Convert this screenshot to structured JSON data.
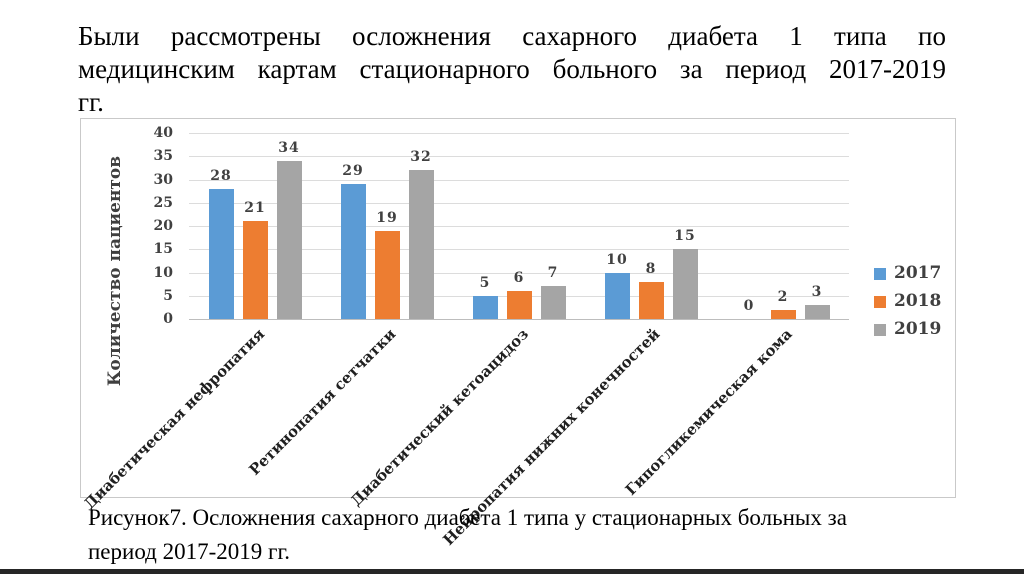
{
  "slide": {
    "title_lines": [
      "Были рассмотрены осложнения сахарного диабета 1 типа по",
      "медицинским картам стационарного больного за период 2017-2019",
      "гг."
    ],
    "caption_lines": [
      "Рисунок7. Осложнения сахарного диабета 1 типа у стационарных больных за",
      "период 2017-2019 гг."
    ]
  },
  "chart_data": {
    "type": "bar",
    "title": "",
    "xlabel": "",
    "ylabel": "Количество пациентов",
    "categories": [
      "Диабетическая нефропатия",
      "Ретинопатия сетчатки",
      "Диабетический кетоацидоз",
      "Нейропатия нижних конечностей",
      "Гипогликемическая кома"
    ],
    "series": [
      {
        "name": "2017",
        "color": "#5B9BD5",
        "values": [
          28,
          29,
          5,
          10,
          0
        ]
      },
      {
        "name": "2018",
        "color": "#ED7D31",
        "values": [
          21,
          19,
          6,
          8,
          2
        ]
      },
      {
        "name": "2019",
        "color": "#A5A5A5",
        "values": [
          34,
          32,
          7,
          15,
          3
        ]
      }
    ],
    "ylim": [
      0,
      40
    ],
    "ytick_step": 5,
    "grid": true,
    "data_labels": true,
    "legend_position": "right",
    "colors": {
      "grid": "#DCDCDC",
      "axis": "#BDBDBD",
      "text": "#404040",
      "category_text": "#1F1F1F"
    }
  }
}
